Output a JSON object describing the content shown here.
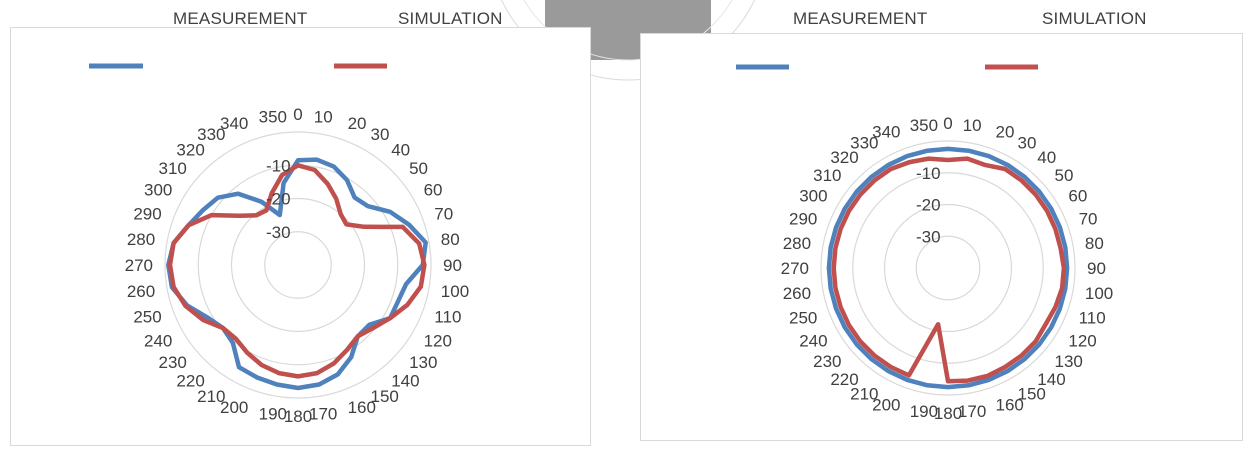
{
  "chart_data": [
    {
      "type": "radar",
      "title": "",
      "legend": {
        "position": "top",
        "entries": [
          "MEASUREMENT",
          "SIMULATION"
        ]
      },
      "angles_deg": [
        0,
        10,
        20,
        30,
        40,
        50,
        60,
        70,
        80,
        90,
        100,
        110,
        120,
        130,
        140,
        150,
        160,
        170,
        180,
        190,
        200,
        210,
        220,
        230,
        240,
        250,
        260,
        270,
        280,
        290,
        300,
        310,
        320,
        330,
        340,
        350
      ],
      "radial_ticks": [
        -10,
        -20,
        -30
      ],
      "rlim": [
        -40,
        0
      ],
      "grid": true,
      "series": [
        {
          "name": "MEASUREMENT",
          "color": "#4F81BD",
          "values": [
            -8.5,
            -7.8,
            -8.5,
            -10.5,
            -13.5,
            -12.5,
            -8,
            -4.5,
            -1,
            -2.5,
            -7,
            -8,
            -8,
            -12,
            -12,
            -8,
            -5,
            -3.5,
            -3,
            -3.5,
            -4,
            -4.5,
            -9.5,
            -10.5,
            -8.5,
            -4.5,
            -1.5,
            -1,
            -2,
            -5,
            -7,
            -8.5,
            -12,
            -18,
            -24,
            -15
          ]
        },
        {
          "name": "SIMULATION",
          "color": "#C0504D",
          "values": [
            -10,
            -11,
            -14,
            -17,
            -20,
            -21,
            -17,
            -6.5,
            -3,
            -2,
            -2.5,
            -5,
            -8,
            -10.5,
            -12,
            -10.5,
            -8.5,
            -7,
            -6.5,
            -7,
            -8,
            -9.5,
            -11,
            -10.5,
            -7,
            -4,
            -2,
            -1.5,
            -2,
            -5,
            -10,
            -17,
            -20.5,
            -21,
            -17,
            -12.5
          ]
        }
      ]
    },
    {
      "type": "radar",
      "title": "",
      "legend": {
        "position": "top",
        "entries": [
          "MEASUREMENT",
          "SIMULATION"
        ]
      },
      "angles_deg": [
        0,
        10,
        20,
        30,
        40,
        50,
        60,
        70,
        80,
        90,
        100,
        110,
        120,
        130,
        140,
        150,
        160,
        170,
        180,
        190,
        200,
        210,
        220,
        230,
        240,
        250,
        260,
        270,
        280,
        290,
        300,
        310,
        320,
        330,
        340,
        350
      ],
      "radial_ticks": [
        -10,
        -20,
        -30
      ],
      "rlim": [
        -40,
        0
      ],
      "grid": true,
      "series": [
        {
          "name": "MEASUREMENT",
          "color": "#4F81BD",
          "values": [
            -2.5,
            -2.5,
            -2.5,
            -2.5,
            -2.5,
            -2.5,
            -2.5,
            -2.5,
            -2.5,
            -2.5,
            -2.5,
            -2.5,
            -2.5,
            -2.5,
            -2.5,
            -2.5,
            -2.5,
            -2.5,
            -2.5,
            -2.5,
            -2.5,
            -2.5,
            -2.5,
            -2.5,
            -2.5,
            -2.5,
            -2.5,
            -2.5,
            -2.5,
            -2.5,
            -2.5,
            -2.5,
            -2.5,
            -2.5,
            -2.5,
            -2.5
          ]
        },
        {
          "name": "SIMULATION",
          "color": "#C0504D",
          "values": [
            -6,
            -5,
            -5.5,
            -4,
            -4,
            -4,
            -4,
            -4,
            -4,
            -3.5,
            -3.5,
            -4,
            -4.5,
            -4,
            -4,
            -4,
            -3.8,
            -4,
            -4.3,
            -22,
            -4,
            -4,
            -4,
            -4,
            -4,
            -4,
            -4,
            -4,
            -4,
            -4,
            -4,
            -4,
            -4,
            -4,
            -4.5,
            -5
          ]
        }
      ]
    }
  ]
}
